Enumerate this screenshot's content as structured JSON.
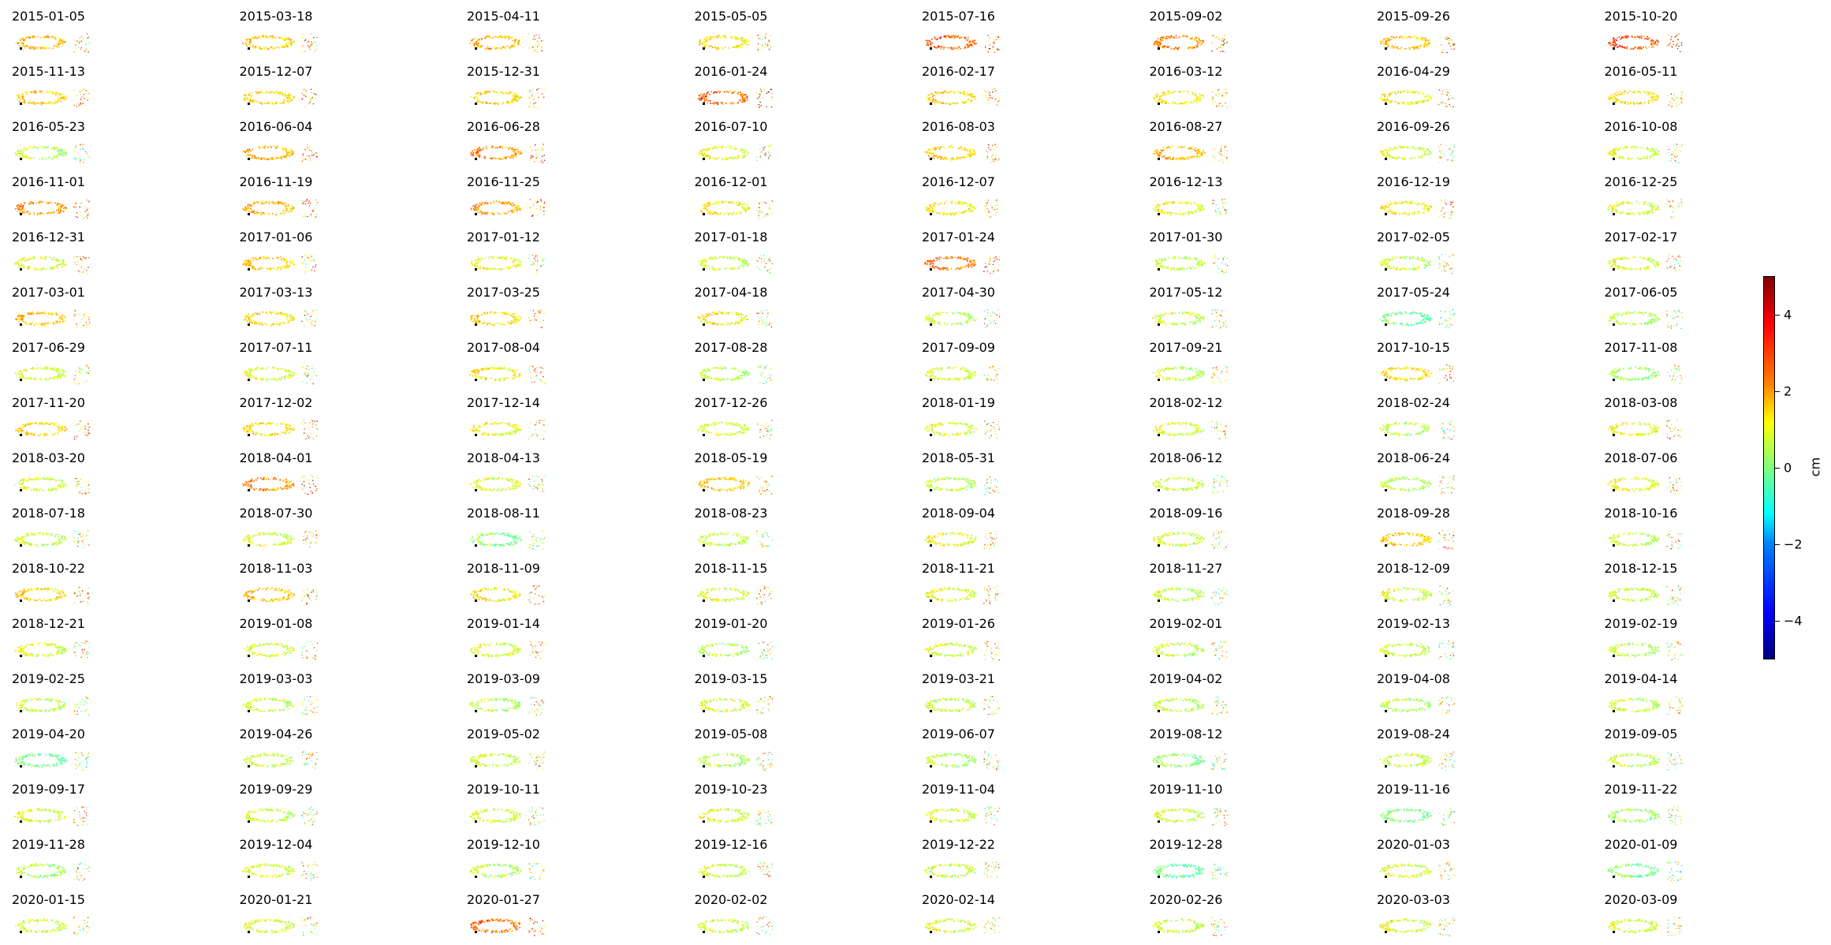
{
  "chart_data": {
    "type": "scatter",
    "layout": "small-multiples grid, 8 columns x 17 rows",
    "panels": [
      "2015-01-05",
      "2015-03-18",
      "2015-04-11",
      "2015-05-05",
      "2015-07-16",
      "2015-09-02",
      "2015-09-26",
      "2015-10-20",
      "2015-11-13",
      "2015-12-07",
      "2015-12-31",
      "2016-01-24",
      "2016-02-17",
      "2016-03-12",
      "2016-04-29",
      "2016-05-11",
      "2016-05-23",
      "2016-06-04",
      "2016-06-28",
      "2016-07-10",
      "2016-08-03",
      "2016-08-27",
      "2016-09-26",
      "2016-10-08",
      "2016-11-01",
      "2016-11-19",
      "2016-11-25",
      "2016-12-01",
      "2016-12-07",
      "2016-12-13",
      "2016-12-19",
      "2016-12-25",
      "2016-12-31",
      "2017-01-06",
      "2017-01-12",
      "2017-01-18",
      "2017-01-24",
      "2017-01-30",
      "2017-02-05",
      "2017-02-17",
      "2017-03-01",
      "2017-03-13",
      "2017-03-25",
      "2017-04-18",
      "2017-04-30",
      "2017-05-12",
      "2017-05-24",
      "2017-06-05",
      "2017-06-29",
      "2017-07-11",
      "2017-08-04",
      "2017-08-28",
      "2017-09-09",
      "2017-09-21",
      "2017-10-15",
      "2017-11-08",
      "2017-11-20",
      "2017-12-02",
      "2017-12-14",
      "2017-12-26",
      "2018-01-19",
      "2018-02-12",
      "2018-02-24",
      "2018-03-08",
      "2018-03-20",
      "2018-04-01",
      "2018-04-13",
      "2018-05-19",
      "2018-05-31",
      "2018-06-12",
      "2018-06-24",
      "2018-07-06",
      "2018-07-18",
      "2018-07-30",
      "2018-08-11",
      "2018-08-23",
      "2018-09-04",
      "2018-09-16",
      "2018-09-28",
      "2018-10-16",
      "2018-10-22",
      "2018-11-03",
      "2018-11-09",
      "2018-11-15",
      "2018-11-21",
      "2018-11-27",
      "2018-12-09",
      "2018-12-15",
      "2018-12-21",
      "2019-01-08",
      "2019-01-14",
      "2019-01-20",
      "2019-01-26",
      "2019-02-01",
      "2019-02-13",
      "2019-02-19",
      "2019-02-25",
      "2019-03-03",
      "2019-03-09",
      "2019-03-15",
      "2019-03-21",
      "2019-04-02",
      "2019-04-08",
      "2019-04-14",
      "2019-04-20",
      "2019-04-26",
      "2019-05-02",
      "2019-05-08",
      "2019-06-07",
      "2019-08-12",
      "2019-08-24",
      "2019-09-05",
      "2019-09-17",
      "2019-09-29",
      "2019-10-11",
      "2019-10-23",
      "2019-11-04",
      "2019-11-10",
      "2019-11-16",
      "2019-11-22",
      "2019-11-28",
      "2019-12-04",
      "2019-12-10",
      "2019-12-16",
      "2019-12-22",
      "2019-12-28",
      "2020-01-03",
      "2020-01-09",
      "2020-01-15",
      "2020-01-21",
      "2020-01-27",
      "2020-02-02",
      "2020-02-14",
      "2020-02-26",
      "2020-03-03",
      "2020-03-09"
    ],
    "panel_mean_cm": [
      1.8,
      1.6,
      1.8,
      1.4,
      2.6,
      2.3,
      1.6,
      2.8,
      1.6,
      1.4,
      1.4,
      2.6,
      1.4,
      1.2,
      1.2,
      1.3,
      0.5,
      1.8,
      2.2,
      1.0,
      1.4,
      1.8,
      0.8,
      0.8,
      2.2,
      1.8,
      2.0,
      1.2,
      1.2,
      1.0,
      1.2,
      0.8,
      0.8,
      1.6,
      1.0,
      0.6,
      2.4,
      0.6,
      0.6,
      0.8,
      1.8,
      1.4,
      1.4,
      1.2,
      0.5,
      0.6,
      -0.3,
      0.4,
      0.8,
      0.8,
      1.2,
      0.4,
      0.8,
      0.6,
      1.4,
      0.2,
      1.4,
      1.4,
      1.0,
      0.8,
      0.8,
      0.8,
      0.4,
      1.0,
      0.8,
      2.2,
      0.8,
      1.6,
      0.6,
      0.6,
      0.4,
      1.0,
      0.6,
      0.8,
      0.0,
      0.6,
      1.0,
      0.6,
      1.6,
      0.6,
      1.4,
      1.6,
      1.2,
      0.8,
      1.0,
      0.6,
      0.8,
      0.6,
      0.8,
      0.8,
      0.8,
      0.4,
      0.8,
      0.6,
      0.6,
      0.4,
      0.6,
      0.6,
      0.4,
      0.8,
      0.6,
      0.6,
      0.4,
      0.6,
      -0.2,
      0.6,
      0.6,
      0.4,
      0.4,
      0.0,
      0.6,
      0.6,
      0.8,
      0.6,
      0.8,
      0.8,
      0.8,
      0.8,
      -0.2,
      0.2,
      0.4,
      0.8,
      0.4,
      0.6,
      0.6,
      -0.4,
      0.8,
      -0.2,
      0.6,
      0.8,
      2.6,
      0.6,
      0.8,
      0.6,
      0.8,
      0.8
    ],
    "colorbar": {
      "colormap": "jet",
      "min": -5,
      "max": 5,
      "ticks": [
        -4,
        -2,
        0,
        2,
        4
      ],
      "tick_labels": [
        "−4",
        "−2",
        "0",
        "2",
        "4"
      ],
      "label": "cm"
    },
    "axes_visible": false
  }
}
